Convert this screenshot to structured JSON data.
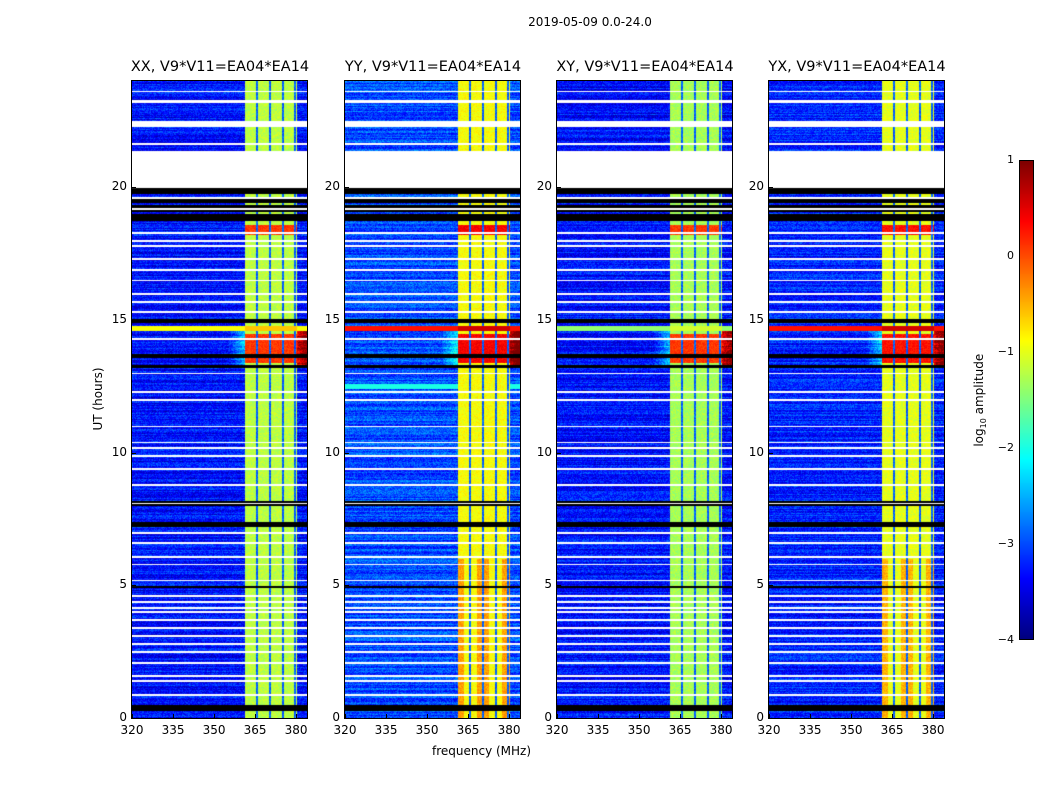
{
  "figure": {
    "suptitle": "2019-05-09 0.0-24.0",
    "xlabel": "frequency (MHz)",
    "ylabel": "UT (hours)"
  },
  "colorbar": {
    "label_main": "log",
    "label_sub": "10",
    "label_rest": " amplitude",
    "ticks": [
      "1",
      "0",
      "−1",
      "−2",
      "−3",
      "−4"
    ],
    "range": [
      -4,
      1
    ],
    "colormap": "jet"
  },
  "chart_data": {
    "type": "heatmap",
    "title": "2019-05-09 0.0-24.0",
    "xlabel": "frequency (MHz)",
    "ylabel": "UT (hours)",
    "xlim": [
      320,
      384
    ],
    "ylim": [
      0,
      24
    ],
    "xticks": [
      "320",
      "335",
      "350",
      "365",
      "380"
    ],
    "yticks": [
      "0",
      "5",
      "10",
      "15",
      "20"
    ],
    "panels": [
      {
        "title": "XX, V9*V11=EA04*EA14",
        "offband": -3.3,
        "inband": -1.2,
        "line14_7": -0.9,
        "rfi_burst": 0.1
      },
      {
        "title": "YY, V9*V11=EA04*EA14",
        "offband": -3.0,
        "inband": -0.9,
        "line14_7": 0.3,
        "rfi_burst": 0.4
      },
      {
        "title": "XY, V9*V11=EA04*EA14",
        "offband": -3.3,
        "inband": -1.3,
        "line14_7": -1.4,
        "rfi_burst": 0.1
      },
      {
        "title": "YX, V9*V11=EA04*EA14",
        "offband": -3.2,
        "inband": -1.0,
        "line14_7": 0.3,
        "rfi_burst": 0.3
      }
    ],
    "rfi_band_mhz": [
      361,
      380
    ],
    "channel_gaps_mhz": [
      365.5,
      370.2,
      374.9,
      379.4
    ],
    "flagged_hours": [
      [
        20.0,
        21.4
      ],
      [
        22.3,
        22.5
      ],
      [
        23.2,
        23.3
      ],
      [
        23.6,
        23.65
      ],
      [
        21.6,
        21.7
      ]
    ],
    "flagged_lines_hours": [
      0.9,
      1.4,
      1.6,
      2.1,
      2.5,
      2.8,
      3.1,
      3.4,
      3.7,
      4.0,
      4.15,
      4.4,
      4.6,
      5.2,
      5.8,
      6.1,
      6.6,
      7.0,
      8.1,
      8.8,
      9.4,
      9.9,
      10.2,
      10.4,
      11.0,
      12.0,
      12.3,
      13.0,
      14.3,
      15.3,
      15.7,
      16.0,
      16.5,
      16.9,
      17.3,
      17.8,
      18.0,
      18.3,
      19.2,
      19.6
    ],
    "zero_hours": [
      [
        0.3,
        0.5
      ],
      [
        18.7,
        20.0
      ],
      [
        14.9,
        15.05
      ],
      [
        7.2,
        7.4
      ],
      [
        8.0,
        8.2
      ],
      [
        13.2,
        13.3
      ],
      [
        13.6,
        13.75
      ],
      [
        4.9,
        5.0
      ]
    ],
    "colorbar_range": [
      -4,
      1
    ]
  }
}
